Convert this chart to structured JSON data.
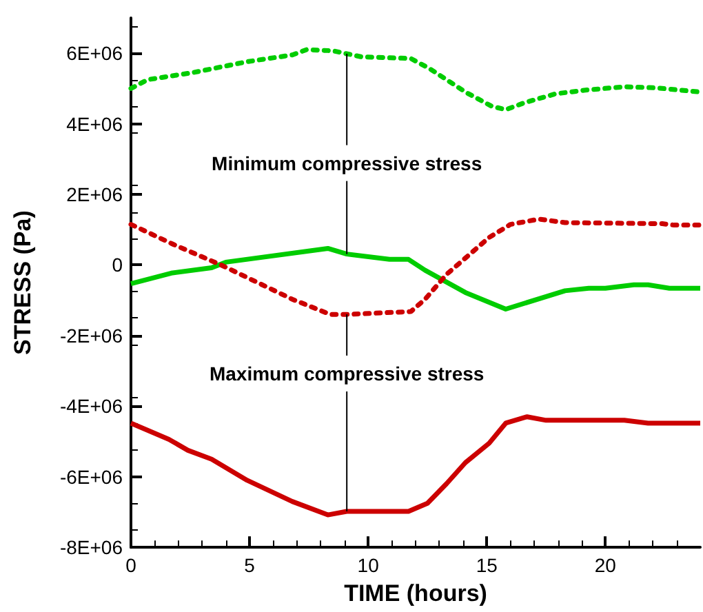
{
  "chart_data": {
    "type": "line",
    "xlabel": "TIME (hours)",
    "ylabel": "STRESS (Pa)",
    "xlim": [
      0,
      24
    ],
    "xticks": [
      0,
      5,
      10,
      15,
      20
    ],
    "ylim": [
      -8000000,
      7000000
    ],
    "yticks": [
      {
        "value": -8000000,
        "label": "-8E+06"
      },
      {
        "value": -6000000,
        "label": "-6E+06"
      },
      {
        "value": -4000000,
        "label": "-4E+06"
      },
      {
        "value": -2000000,
        "label": "-2E+06"
      },
      0,
      {
        "value": 2000000,
        "label": "2E+06"
      },
      {
        "value": 4000000,
        "label": "4E+06"
      },
      {
        "value": 6000000,
        "label": "6E+06"
      }
    ],
    "grid": false,
    "marker": "none",
    "series": [
      {
        "color": "#00cc00",
        "line_style": "dotted",
        "x": [
          0,
          0.7,
          2.6,
          4.9,
          6.8,
          7.4,
          8.5,
          9.7,
          11.8,
          12.6,
          14.1,
          15.2,
          15.8,
          16.6,
          17.9,
          19.1,
          20.8,
          22.1,
          24
        ],
        "values": [
          5000000,
          5250000,
          5450000,
          5760000,
          5950000,
          6100000,
          6070000,
          5900000,
          5850000,
          5560000,
          4900000,
          4500000,
          4400000,
          4600000,
          4850000,
          4950000,
          5050000,
          5020000,
          4900000
        ]
      },
      {
        "color": "#00cc00",
        "line_style": "solid",
        "x": [
          0,
          1.7,
          3.4,
          4.0,
          8.3,
          9.1,
          10.9,
          11.7,
          12.4,
          14.1,
          15.8,
          18.3,
          19.3,
          20,
          21.2,
          21.8,
          22.7,
          24
        ],
        "values": [
          -530000,
          -230000,
          -80000,
          80000,
          470000,
          310000,
          160000,
          160000,
          -150000,
          -780000,
          -1250000,
          -730000,
          -660000,
          -660000,
          -560000,
          -560000,
          -660000,
          -660000
        ]
      },
      {
        "color": "#cc0000",
        "line_style": "dotted",
        "x": [
          0,
          1.8,
          3.8,
          6.8,
          8.4,
          9.1,
          11.8,
          12.4,
          13.3,
          15.1,
          16.0,
          17.2,
          18.3,
          22.4,
          22.9,
          24
        ],
        "values": [
          1150000,
          580000,
          0,
          -970000,
          -1400000,
          -1400000,
          -1320000,
          -970000,
          -270000,
          780000,
          1150000,
          1300000,
          1200000,
          1170000,
          1130000,
          1130000
        ]
      },
      {
        "color": "#cc0000",
        "line_style": "solid",
        "x": [
          0,
          1.6,
          2.4,
          3.4,
          4.9,
          6.8,
          8.3,
          9.1,
          11.7,
          12.5,
          13.3,
          14.1,
          15.1,
          15.8,
          16.7,
          17.5,
          20.8,
          21.8,
          24
        ],
        "values": [
          -4480000,
          -4940000,
          -5250000,
          -5500000,
          -6100000,
          -6700000,
          -7080000,
          -6980000,
          -6980000,
          -6750000,
          -6200000,
          -5600000,
          -5050000,
          -4480000,
          -4300000,
          -4400000,
          -4400000,
          -4480000,
          -4480000
        ]
      }
    ],
    "annotations": [
      {
        "text": "Minimum compressive stress",
        "x": 9.1,
        "y": 310000
      },
      {
        "text": "Maximum compressive stress",
        "x": 9.1,
        "y": -6980000
      }
    ]
  }
}
